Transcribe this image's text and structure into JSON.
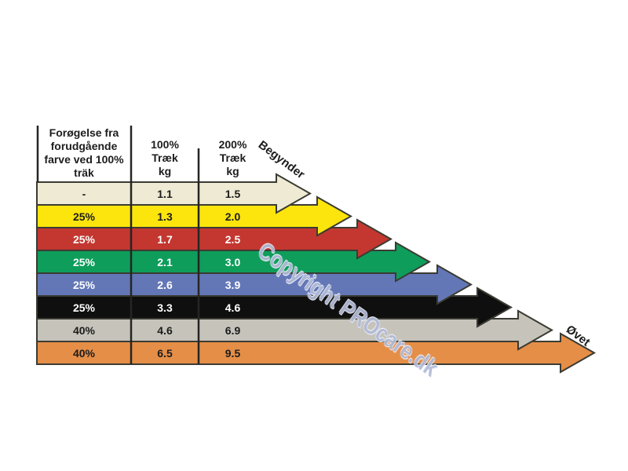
{
  "table": {
    "headers": {
      "increase": "Forøgelse fra\nforudgående\nfarve ved 100%\nträk",
      "pull100": "100%\nTræk\nkg",
      "pull200": "200%\nTræk\nkg"
    },
    "rows": [
      {
        "band": "beige",
        "fill": "#EEEAD4",
        "text": "#1c1c1c",
        "increase": "-",
        "kg100": "1.1",
        "kg200": "1.5"
      },
      {
        "band": "yellow",
        "fill": "#FCE50D",
        "text": "#1c1c1c",
        "increase": "25%",
        "kg100": "1.3",
        "kg200": "2.0"
      },
      {
        "band": "red",
        "fill": "#C33730",
        "text": "#ffffff",
        "increase": "25%",
        "kg100": "1.7",
        "kg200": "2.5"
      },
      {
        "band": "green",
        "fill": "#0E9D5B",
        "text": "#ffffff",
        "increase": "25%",
        "kg100": "2.1",
        "kg200": "3.0"
      },
      {
        "band": "blue",
        "fill": "#6377B7",
        "text": "#ffffff",
        "increase": "25%",
        "kg100": "2.6",
        "kg200": "3.9"
      },
      {
        "band": "black",
        "fill": "#0F0F0F",
        "text": "#ffffff",
        "increase": "25%",
        "kg100": "3.3",
        "kg200": "4.6"
      },
      {
        "band": "gray",
        "fill": "#C6C3BB",
        "text": "#1c1c1c",
        "increase": "40%",
        "kg100": "4.6",
        "kg200": "6.9"
      },
      {
        "band": "orange",
        "fill": "#E58E47",
        "text": "#1c1c1c",
        "increase": "40%",
        "kg100": "6.5",
        "kg200": "9.5"
      }
    ]
  },
  "labels": {
    "beginner": "Begynder",
    "advanced": "Øvet"
  },
  "watermark": {
    "text": "Copyright PROcare.dk",
    "color": "#b2bbd8"
  },
  "chart_data": {
    "type": "table",
    "title": "Resistance band progression chart (Danish)",
    "columns": [
      "Forøgelse fra forudgående farve ved 100% træk",
      "100% Træk kg",
      "200% Træk kg"
    ],
    "rows": [
      {
        "band_color": "beige",
        "hex": "#EEEAD4",
        "increase_from_previous": null,
        "pull_100pct_kg": 1.1,
        "pull_200pct_kg": 1.5
      },
      {
        "band_color": "yellow",
        "hex": "#FCE50D",
        "increase_from_previous": "25%",
        "pull_100pct_kg": 1.3,
        "pull_200pct_kg": 2.0
      },
      {
        "band_color": "red",
        "hex": "#C33730",
        "increase_from_previous": "25%",
        "pull_100pct_kg": 1.7,
        "pull_200pct_kg": 2.5
      },
      {
        "band_color": "green",
        "hex": "#0E9D5B",
        "increase_from_previous": "25%",
        "pull_100pct_kg": 2.1,
        "pull_200pct_kg": 3.0
      },
      {
        "band_color": "blue",
        "hex": "#6377B7",
        "increase_from_previous": "25%",
        "pull_100pct_kg": 2.6,
        "pull_200pct_kg": 3.9
      },
      {
        "band_color": "black",
        "hex": "#0F0F0F",
        "increase_from_previous": "25%",
        "pull_100pct_kg": 3.3,
        "pull_200pct_kg": 4.6
      },
      {
        "band_color": "gray",
        "hex": "#C6C3BB",
        "increase_from_previous": "40%",
        "pull_100pct_kg": 4.6,
        "pull_200pct_kg": 6.9
      },
      {
        "band_color": "orange",
        "hex": "#E58E47",
        "increase_from_previous": "40%",
        "pull_100pct_kg": 6.5,
        "pull_200pct_kg": 9.5
      }
    ],
    "annotations": [
      {
        "text": "Begynder",
        "meaning": "start of arrow scale, shortest arrow (beige)"
      },
      {
        "text": "Øvet",
        "meaning": "end of arrow scale, longest arrow (orange)"
      }
    ],
    "layout_hint": "each colored row extends rightward as an arrow of increasing length, beginner (top) to advanced (bottom)"
  }
}
